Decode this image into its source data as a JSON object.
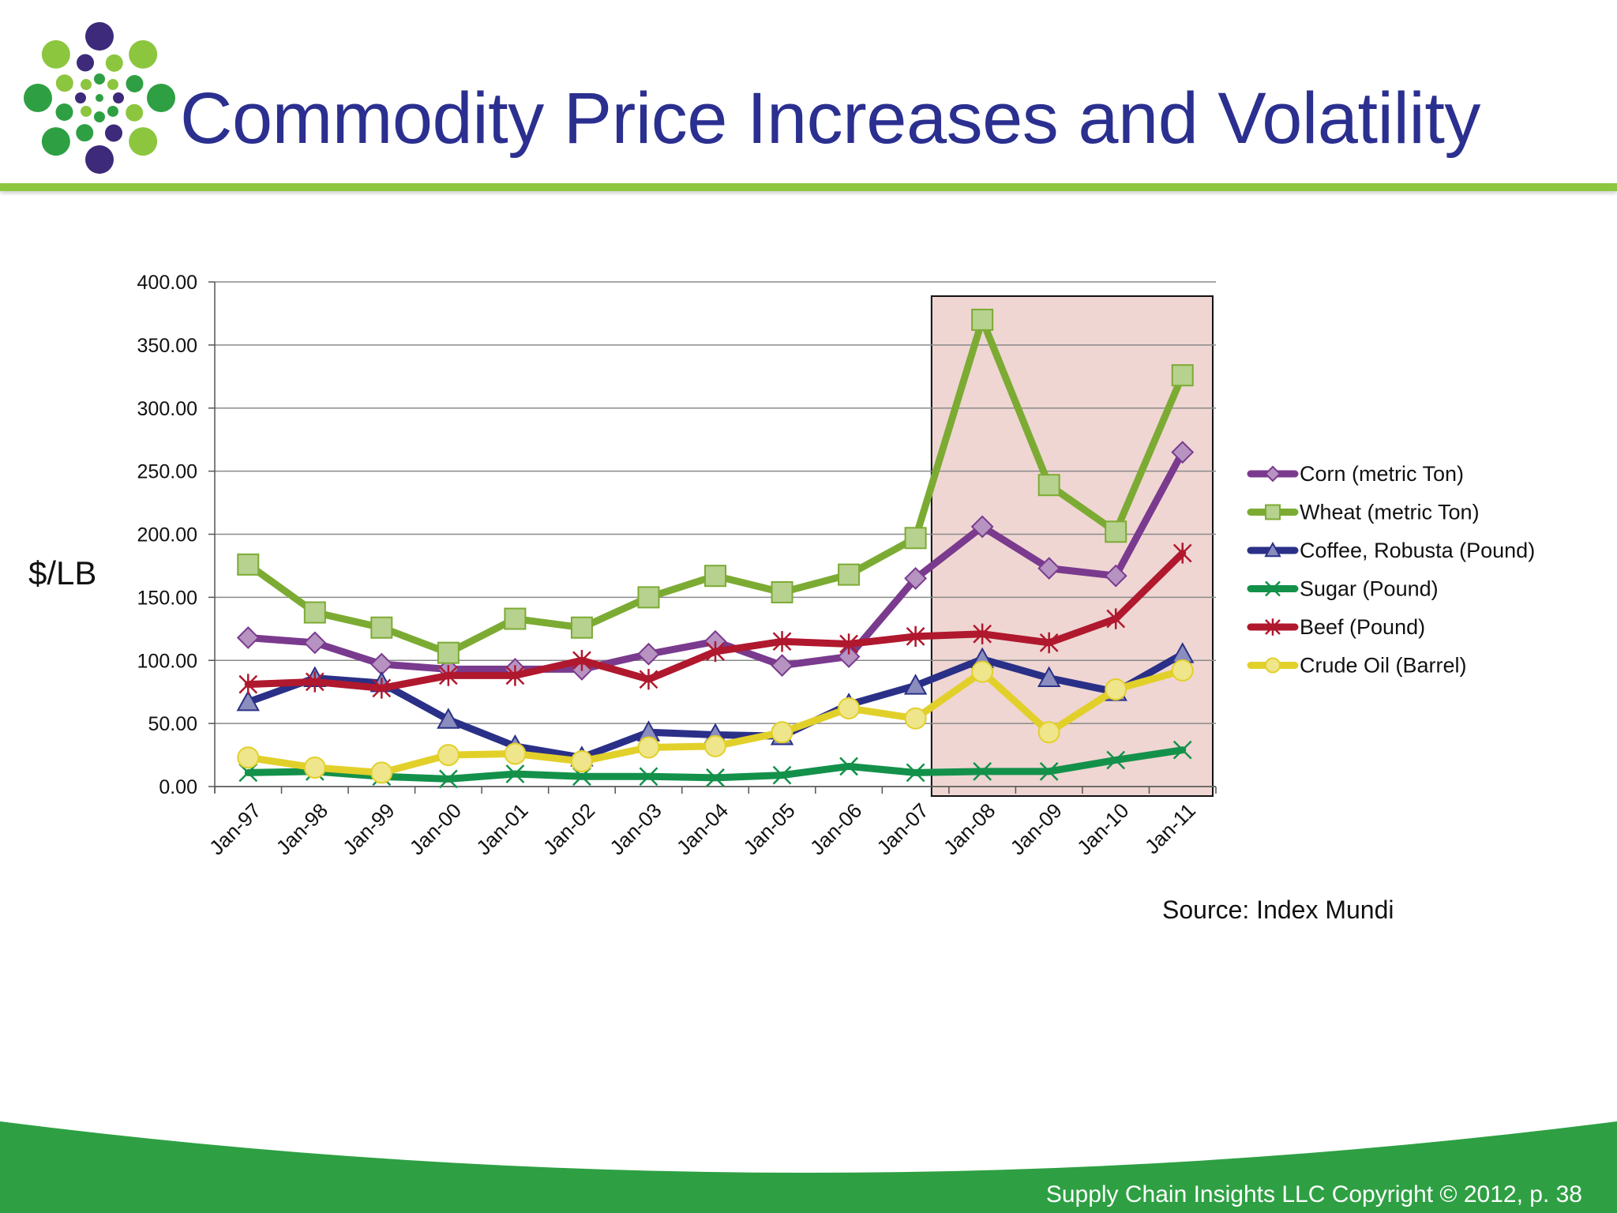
{
  "header": {
    "title": "Commodity Price Increases and Volatility",
    "logo_icon": "dots-burst-logo-icon",
    "rule_color": "#8cc63f"
  },
  "chart_data": {
    "type": "line",
    "ylabel": "$/LB",
    "ylim": [
      0,
      400
    ],
    "yticks": [
      "0.00",
      "50.00",
      "100.00",
      "150.00",
      "200.00",
      "250.00",
      "300.00",
      "350.00",
      "400.00"
    ],
    "grid": true,
    "legend_position": "right",
    "highlight_range": [
      "Jan-08",
      "Jan-11"
    ],
    "categories": [
      "Jan-97",
      "Jan-98",
      "Jan-99",
      "Jan-00",
      "Jan-01",
      "Jan-02",
      "Jan-03",
      "Jan-04",
      "Jan-05",
      "Jan-06",
      "Jan-07",
      "Jan-08",
      "Jan-09",
      "Jan-10",
      "Jan-11"
    ],
    "series": [
      {
        "name": "Corn (metric Ton)",
        "color": "#7a3a8e",
        "marker": "diamond",
        "values": [
          118,
          114,
          97,
          93,
          93,
          93,
          105,
          115,
          96,
          103,
          165,
          206,
          173,
          167,
          265
        ]
      },
      {
        "name": "Wheat (metric Ton)",
        "color": "#7cab33",
        "marker": "square",
        "values": [
          176,
          138,
          126,
          106,
          133,
          126,
          150,
          167,
          154,
          168,
          197,
          370,
          239,
          202,
          326
        ]
      },
      {
        "name": "Coffee, Robusta  (Pound)",
        "color": "#2a3087",
        "marker": "triangle",
        "values": [
          67,
          86,
          82,
          53,
          32,
          23,
          43,
          41,
          40,
          65,
          80,
          101,
          86,
          75,
          105
        ]
      },
      {
        "name": "Sugar (Pound)",
        "color": "#13914a",
        "marker": "x",
        "values": [
          11,
          12,
          8,
          6,
          10,
          8,
          8,
          7,
          9,
          16,
          11,
          12,
          12,
          21,
          29
        ]
      },
      {
        "name": "Beef (Pound)",
        "color": "#b0182e",
        "marker": "star",
        "values": [
          81,
          83,
          78,
          88,
          88,
          100,
          85,
          107,
          115,
          113,
          119,
          121,
          114,
          133,
          185
        ]
      },
      {
        "name": "Crude Oil (Barrel)",
        "color": "#e2d02a",
        "marker": "circle",
        "values": [
          23,
          15,
          11,
          25,
          26,
          20,
          31,
          32,
          43,
          62,
          54,
          91,
          43,
          77,
          92
        ]
      }
    ]
  },
  "source": "Source: Index Mundi",
  "footer": {
    "text": "Supply Chain Insights LLC Copyright © 2012, p. 38",
    "band_color": "#2ea043"
  }
}
